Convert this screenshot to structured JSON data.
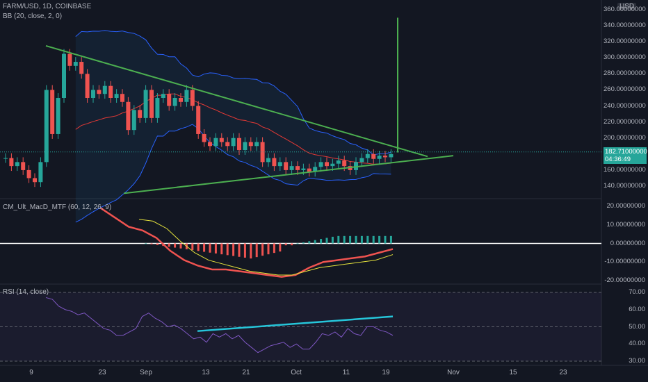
{
  "header": {
    "symbol": "FARM/USD, 1D, COINBASE",
    "currency": "USD",
    "bb_label": "BB (20, close, 2, 0)"
  },
  "macd": {
    "label": "CM_Ult_MacD_MTF (60, 12, 26, 9)"
  },
  "rsi": {
    "label": "RSI (14, close)"
  },
  "last_price": {
    "value": "182.71000000",
    "countdown": "04:36:49"
  },
  "colors": {
    "bg": "#131722",
    "up": "#26a69a",
    "down": "#ef5350",
    "trend": "#4caf50",
    "bb": "#2962ff",
    "basis": "#e53935",
    "rsi": "#7e57c2",
    "rsi_trend": "#26c6da"
  },
  "chart_data": [
    {
      "type": "candlestick",
      "ylim": [
        130,
        365
      ],
      "y_ticks": [
        "360.00000000",
        "340.00000000",
        "320.00000000",
        "300.00000000",
        "280.00000000",
        "260.00000000",
        "240.00000000",
        "220.00000000",
        "200.00000000",
        "180.00000000",
        "160.00000000",
        "140.00000000"
      ],
      "x_ticks": [
        "9",
        "23",
        "Sep",
        "13",
        "21",
        "Oct",
        "11",
        "19",
        "Nov",
        "15",
        "23"
      ],
      "close": [
        175,
        165,
        170,
        160,
        150,
        145,
        170,
        260,
        205,
        250,
        305,
        290,
        295,
        280,
        250,
        260,
        255,
        265,
        250,
        255,
        245,
        210,
        235,
        225,
        260,
        225,
        250,
        255,
        240,
        250,
        245,
        260,
        240,
        205,
        195,
        190,
        200,
        195,
        190,
        200,
        185,
        195,
        190,
        195,
        170,
        175,
        165,
        170,
        160,
        165,
        160,
        162,
        158,
        164,
        170,
        165,
        168,
        172,
        165,
        160,
        170,
        175,
        180,
        174,
        178,
        176,
        180
      ]
    },
    {
      "type": "line",
      "name_label": "CM_Ult_MacD_MTF (60, 12, 26, 9)",
      "y_ticks": [
        "20.00000000",
        "10.00000000",
        "0.00000000",
        "-10.00000000",
        "-20.00000000"
      ],
      "ylim": [
        -22,
        22
      ]
    },
    {
      "type": "line",
      "name_label": "RSI (14, close)",
      "y_ticks": [
        "70.00",
        "60.00",
        "50.00",
        "40.00",
        "30.00"
      ],
      "ylim": [
        28,
        72
      ]
    }
  ]
}
